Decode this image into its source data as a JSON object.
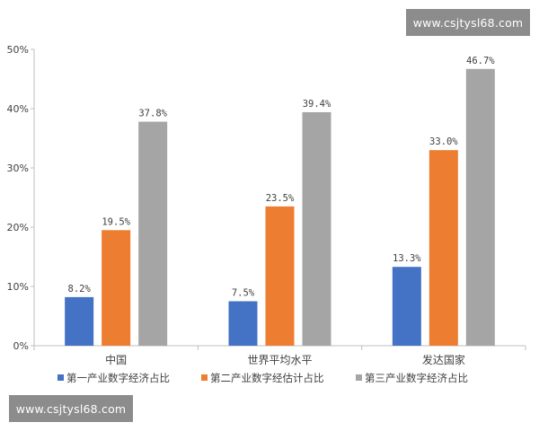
{
  "watermarks": {
    "top": "www.csjtysl68.com",
    "bottom": "www.csjtysl68.com"
  },
  "colors": {
    "series1": "#4472c4",
    "series2": "#ed7d31",
    "series3": "#a5a5a5",
    "axis": "#bfbfbf",
    "text": "#404040"
  },
  "chart_data": {
    "type": "bar",
    "title": "",
    "xlabel": "",
    "ylabel": "",
    "categories": [
      "中国",
      "世界平均水平",
      "发达国家"
    ],
    "ylim": [
      0,
      50
    ],
    "yticks": [
      "0%",
      "10%",
      "20%",
      "30%",
      "40%",
      "50%"
    ],
    "y_unit": "%",
    "grid": false,
    "legend_position": "bottom",
    "series": [
      {
        "name": "第一产业数字经济占比",
        "values": [
          8.2,
          7.5,
          13.3
        ],
        "labels": [
          "8.2%",
          "7.5%",
          "13.3%"
        ]
      },
      {
        "name": "第二产业数字经估计占比",
        "values": [
          19.5,
          23.5,
          33.0
        ],
        "labels": [
          "19.5%",
          "23.5%",
          "33.0%"
        ]
      },
      {
        "name": "第三产业数字经济占比",
        "values": [
          37.8,
          39.4,
          46.7
        ],
        "labels": [
          "37.8%",
          "39.4%",
          "46.7%"
        ]
      }
    ]
  }
}
